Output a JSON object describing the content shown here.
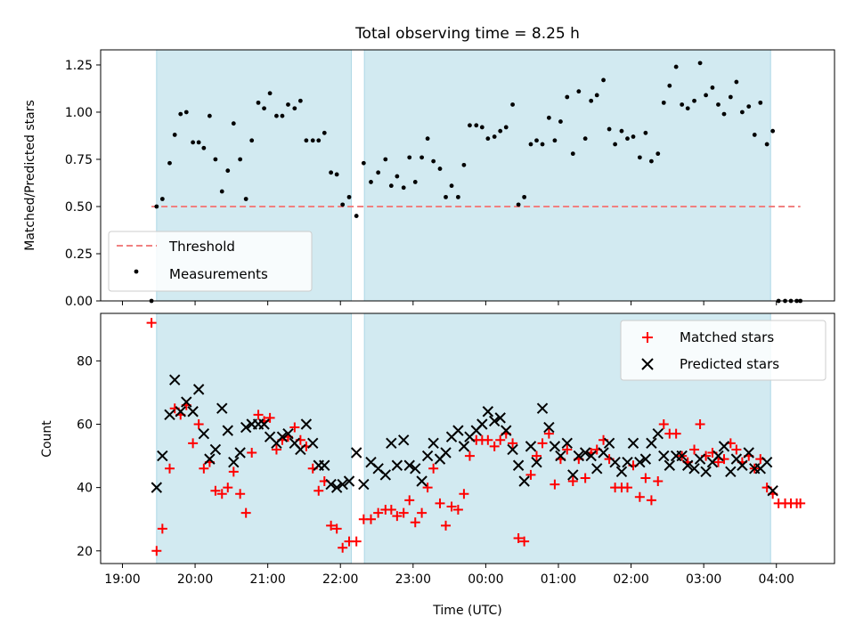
{
  "chart_data": [
    {
      "type": "scatter",
      "title": "Total observing time = 8.25 h",
      "ylabel": "Matched/Predicted stars",
      "xlabel": "",
      "xlim": [
        -0.3,
        9.8
      ],
      "ylim": [
        0,
        1.33
      ],
      "yticks": [
        "0.00",
        "0.25",
        "0.50",
        "0.75",
        "1.00",
        "1.25"
      ],
      "ytick_values": [
        0,
        0.25,
        0.5,
        0.75,
        1.0,
        1.25
      ],
      "legend_position": "lower-left",
      "shaded_intervals": [
        [
          0.47,
          3.15
        ],
        [
          3.33,
          8.92
        ]
      ],
      "shade_color": "#add8e6",
      "threshold": {
        "name": "Threshold",
        "value": 0.5,
        "x_range": [
          0.4,
          9.33
        ],
        "color": "#f08080"
      },
      "series": [
        {
          "name": "Measurements",
          "color": "#000000",
          "x": [
            0.4,
            0.47,
            0.55,
            0.65,
            0.72,
            0.8,
            0.88,
            0.97,
            1.05,
            1.12,
            1.2,
            1.28,
            1.37,
            1.45,
            1.53,
            1.62,
            1.7,
            1.78,
            1.87,
            1.95,
            2.03,
            2.12,
            2.2,
            2.28,
            2.37,
            2.45,
            2.53,
            2.62,
            2.7,
            2.78,
            2.87,
            2.95,
            3.03,
            3.12,
            3.22,
            3.32,
            3.42,
            3.52,
            3.62,
            3.7,
            3.78,
            3.87,
            3.95,
            4.03,
            4.12,
            4.2,
            4.28,
            4.37,
            4.45,
            4.53,
            4.62,
            4.7,
            4.78,
            4.87,
            4.95,
            5.03,
            5.12,
            5.2,
            5.28,
            5.37,
            5.45,
            5.53,
            5.62,
            5.7,
            5.78,
            5.87,
            5.95,
            6.03,
            6.12,
            6.2,
            6.28,
            6.37,
            6.45,
            6.53,
            6.62,
            6.7,
            6.78,
            6.87,
            6.95,
            7.03,
            7.12,
            7.2,
            7.28,
            7.37,
            7.45,
            7.53,
            7.62,
            7.7,
            7.78,
            7.87,
            7.95,
            8.03,
            8.12,
            8.2,
            8.28,
            8.37,
            8.45,
            8.53,
            8.62,
            8.7,
            8.78,
            8.87,
            8.95,
            9.03,
            9.12,
            9.2,
            9.28,
            9.33
          ],
          "y": [
            0.0,
            0.5,
            0.54,
            0.73,
            0.88,
            0.99,
            1.0,
            0.84,
            0.84,
            0.81,
            0.98,
            0.75,
            0.58,
            0.69,
            0.94,
            0.75,
            0.54,
            0.85,
            1.05,
            1.02,
            1.1,
            0.98,
            0.98,
            1.04,
            1.02,
            1.06,
            0.85,
            0.85,
            0.85,
            0.89,
            0.68,
            0.67,
            0.51,
            0.55,
            0.45,
            0.73,
            0.63,
            0.68,
            0.75,
            0.61,
            0.66,
            0.6,
            0.76,
            0.63,
            0.76,
            0.86,
            0.74,
            0.7,
            0.55,
            0.61,
            0.55,
            0.72,
            0.93,
            0.93,
            0.92,
            0.86,
            0.87,
            0.9,
            0.92,
            1.04,
            0.51,
            0.55,
            0.83,
            0.85,
            0.83,
            0.97,
            0.85,
            0.95,
            1.08,
            0.78,
            1.11,
            0.86,
            1.06,
            1.09,
            1.17,
            0.91,
            0.83,
            0.9,
            0.86,
            0.87,
            0.76,
            0.89,
            0.74,
            0.78,
            1.05,
            1.14,
            1.24,
            1.04,
            1.02,
            1.06,
            1.26,
            1.09,
            1.13,
            1.04,
            0.99,
            1.08,
            1.16,
            1.0,
            1.03,
            0.88,
            1.05,
            0.83,
            0.9,
            0.0,
            0.0,
            0.0,
            0.0,
            0.0
          ]
        }
      ]
    },
    {
      "type": "scatter",
      "title": "",
      "xlabel": "Time (UTC)",
      "ylabel": "Count",
      "xlim": [
        -0.3,
        9.8
      ],
      "ylim": [
        16,
        95
      ],
      "yticks": [
        "20",
        "40",
        "60",
        "80"
      ],
      "ytick_values": [
        20,
        40,
        60,
        80
      ],
      "xticks": [
        "19:00",
        "20:00",
        "21:00",
        "22:00",
        "23:00",
        "00:00",
        "01:00",
        "02:00",
        "03:00",
        "04:00"
      ],
      "xtick_values": [
        0,
        1,
        2,
        3,
        4,
        5,
        6,
        7,
        8,
        9
      ],
      "legend_position": "upper-right",
      "shaded_intervals": [
        [
          0.47,
          3.15
        ],
        [
          3.33,
          8.92
        ]
      ],
      "shade_color": "#add8e6",
      "series": [
        {
          "name": "Matched stars",
          "marker": "plus",
          "color": "#ff0000",
          "x": [
            0.4,
            0.47,
            0.55,
            0.65,
            0.72,
            0.8,
            0.88,
            0.97,
            1.05,
            1.12,
            1.2,
            1.28,
            1.37,
            1.45,
            1.53,
            1.62,
            1.7,
            1.78,
            1.87,
            1.95,
            2.03,
            2.12,
            2.2,
            2.28,
            2.37,
            2.45,
            2.53,
            2.62,
            2.7,
            2.78,
            2.87,
            2.95,
            3.03,
            3.12,
            3.22,
            3.32,
            3.42,
            3.52,
            3.62,
            3.7,
            3.78,
            3.87,
            3.95,
            4.03,
            4.12,
            4.2,
            4.28,
            4.37,
            4.45,
            4.53,
            4.62,
            4.7,
            4.78,
            4.87,
            4.95,
            5.03,
            5.12,
            5.2,
            5.28,
            5.37,
            5.45,
            5.53,
            5.62,
            5.7,
            5.78,
            5.87,
            5.95,
            6.03,
            6.12,
            6.2,
            6.28,
            6.37,
            6.45,
            6.53,
            6.62,
            6.7,
            6.78,
            6.87,
            6.95,
            7.03,
            7.12,
            7.2,
            7.28,
            7.37,
            7.45,
            7.53,
            7.62,
            7.7,
            7.78,
            7.87,
            7.95,
            8.03,
            8.12,
            8.2,
            8.28,
            8.37,
            8.45,
            8.53,
            8.62,
            8.7,
            8.78,
            8.87,
            8.95,
            9.03,
            9.12,
            9.2,
            9.28,
            9.33
          ],
          "y": [
            92,
            20,
            27,
            46,
            65,
            63,
            66,
            54,
            60,
            46,
            48,
            39,
            38,
            40,
            45,
            38,
            32,
            51,
            63,
            61,
            62,
            52,
            55,
            56,
            59,
            55,
            53,
            46,
            39,
            42,
            28,
            27,
            21,
            23,
            23,
            30,
            30,
            32,
            33,
            33,
            31,
            32,
            36,
            29,
            32,
            40,
            46,
            35,
            28,
            34,
            33,
            38,
            50,
            55,
            55,
            55,
            53,
            55,
            57,
            54,
            24,
            23,
            44,
            50,
            54,
            57,
            41,
            49,
            52,
            42,
            49,
            43,
            51,
            52,
            55,
            49,
            40,
            40,
            40,
            47,
            37,
            43,
            36,
            42,
            60,
            57,
            57,
            50,
            48,
            52,
            60,
            50,
            51,
            48,
            49,
            54,
            52,
            48,
            50,
            46,
            49,
            40,
            38,
            35,
            35,
            35,
            35,
            35
          ]
        },
        {
          "name": "Predicted stars",
          "marker": "x",
          "color": "#000000",
          "x": [
            0.47,
            0.55,
            0.65,
            0.72,
            0.8,
            0.88,
            0.97,
            1.05,
            1.12,
            1.2,
            1.28,
            1.37,
            1.45,
            1.53,
            1.62,
            1.7,
            1.78,
            1.87,
            1.95,
            2.03,
            2.12,
            2.2,
            2.28,
            2.37,
            2.45,
            2.53,
            2.62,
            2.7,
            2.78,
            2.87,
            2.95,
            3.03,
            3.12,
            3.22,
            3.32,
            3.42,
            3.52,
            3.62,
            3.7,
            3.78,
            3.87,
            3.95,
            4.03,
            4.12,
            4.2,
            4.28,
            4.37,
            4.45,
            4.53,
            4.62,
            4.7,
            4.78,
            4.87,
            4.95,
            5.03,
            5.12,
            5.2,
            5.28,
            5.37,
            5.45,
            5.53,
            5.62,
            5.7,
            5.78,
            5.87,
            5.95,
            6.03,
            6.12,
            6.2,
            6.28,
            6.37,
            6.45,
            6.53,
            6.62,
            6.7,
            6.78,
            6.87,
            6.95,
            7.03,
            7.12,
            7.2,
            7.28,
            7.37,
            7.45,
            7.53,
            7.62,
            7.7,
            7.78,
            7.87,
            7.95,
            8.03,
            8.12,
            8.2,
            8.28,
            8.37,
            8.45,
            8.53,
            8.62,
            8.7,
            8.78,
            8.87,
            8.95
          ],
          "y": [
            40,
            50,
            63,
            74,
            64,
            67,
            64,
            71,
            57,
            49,
            52,
            65,
            58,
            48,
            51,
            59,
            60,
            60,
            60,
            56,
            54,
            56,
            57,
            54,
            52,
            60,
            54,
            47,
            47,
            41,
            40,
            41,
            42,
            51,
            41,
            48,
            46,
            44,
            54,
            47,
            55,
            47,
            46,
            42,
            50,
            54,
            49,
            51,
            56,
            58,
            53,
            56,
            58,
            60,
            64,
            61,
            62,
            58,
            52,
            47,
            42,
            53,
            48,
            65,
            59,
            53,
            50,
            54,
            44,
            50,
            51,
            50,
            46,
            51,
            54,
            48,
            45,
            48,
            54,
            48,
            49,
            54,
            57,
            50,
            47,
            50,
            50,
            47,
            46,
            49,
            45,
            48,
            50,
            53,
            45,
            49,
            47,
            51,
            46,
            46,
            48,
            39
          ]
        }
      ]
    }
  ]
}
